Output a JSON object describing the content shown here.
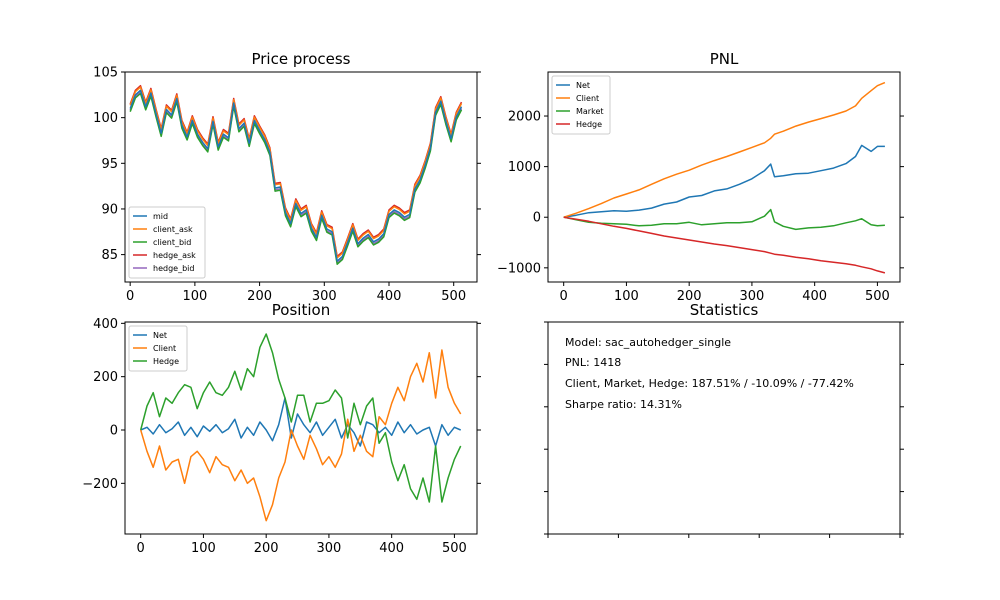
{
  "chart_data": [
    {
      "type": "line",
      "title": "Price process",
      "xlim": [
        -8,
        536
      ],
      "ylim": [
        82,
        105
      ],
      "xticks": [
        0,
        100,
        200,
        300,
        400,
        500
      ],
      "yticks": [
        85,
        90,
        95,
        100,
        105
      ],
      "legend_position": "lower-left",
      "series": [
        {
          "name": "mid",
          "color": "#1f77b4",
          "x": [
            0,
            8,
            16,
            24,
            32,
            40,
            48,
            56,
            64,
            72,
            80,
            88,
            96,
            104,
            112,
            120,
            128,
            136,
            144,
            152,
            160,
            168,
            176,
            184,
            192,
            200,
            208,
            216,
            224,
            232,
            240,
            248,
            256,
            264,
            272,
            280,
            288,
            296,
            304,
            312,
            320,
            328,
            336,
            344,
            352,
            360,
            368,
            376,
            384,
            392,
            400,
            408,
            416,
            424,
            432,
            440,
            448,
            456,
            464,
            472,
            480,
            488,
            496,
            504,
            512
          ],
          "y": [
            101,
            102.5,
            103,
            101.2,
            102.7,
            100.4,
            98.3,
            100.9,
            100.3,
            102.1,
            99.2,
            97.9,
            99.7,
            98.2,
            97.3,
            96.6,
            99.6,
            96.8,
            98.2,
            97.8,
            101.6,
            98.8,
            99.4,
            97.2,
            99.7,
            98.6,
            97.6,
            96.2,
            92.3,
            92.4,
            89.6,
            88.4,
            90.6,
            89.5,
            89.9,
            87.9,
            86.9,
            89.3,
            87.8,
            87.5,
            84.3,
            84.8,
            86.3,
            87.9,
            86.2,
            86.8,
            87.2,
            86.4,
            86.7,
            87.3,
            89.4,
            89.9,
            89.6,
            89.1,
            89.4,
            92.2,
            93.2,
            94.8,
            96.7,
            100.6,
            101.8,
            99.6,
            97.7,
            100.1,
            101.2
          ]
        },
        {
          "name": "client_ask",
          "color": "#ff7f0e"
        },
        {
          "name": "client_bid",
          "color": "#2ca02c"
        },
        {
          "name": "hedge_ask",
          "color": "#d62728"
        },
        {
          "name": "hedge_bid",
          "color": "#9467bd"
        }
      ]
    },
    {
      "type": "line",
      "title": "PNL",
      "xlim": [
        -25,
        536
      ],
      "ylim": [
        -1280,
        2870
      ],
      "xticks": [
        0,
        100,
        200,
        300,
        400,
        500
      ],
      "yticks": [
        -1000,
        0,
        1000,
        2000
      ],
      "legend_position": "upper-left",
      "x": [
        0,
        20,
        40,
        60,
        80,
        100,
        120,
        140,
        160,
        180,
        200,
        220,
        240,
        260,
        280,
        300,
        320,
        330,
        336,
        350,
        370,
        390,
        410,
        430,
        450,
        465,
        475,
        490,
        500,
        512
      ],
      "series": [
        {
          "name": "Net",
          "color": "#1f77b4",
          "values": [
            0,
            40,
            90,
            110,
            130,
            120,
            140,
            180,
            260,
            300,
            400,
            430,
            520,
            560,
            650,
            760,
            920,
            1050,
            800,
            820,
            860,
            870,
            920,
            970,
            1060,
            1200,
            1420,
            1300,
            1400,
            1400
          ]
        },
        {
          "name": "Client",
          "color": "#ff7f0e",
          "values": [
            0,
            80,
            170,
            270,
            380,
            460,
            540,
            650,
            760,
            850,
            930,
            1030,
            1120,
            1200,
            1290,
            1380,
            1470,
            1560,
            1640,
            1700,
            1800,
            1880,
            1950,
            2020,
            2100,
            2200,
            2350,
            2500,
            2600,
            2660
          ]
        },
        {
          "name": "Market",
          "color": "#2ca02c",
          "values": [
            0,
            -50,
            -100,
            -120,
            -130,
            -140,
            -170,
            -160,
            -130,
            -130,
            -100,
            -150,
            -130,
            -110,
            -110,
            -90,
            20,
            150,
            -90,
            -180,
            -240,
            -210,
            -200,
            -170,
            -110,
            -70,
            -30,
            -150,
            -170,
            -160
          ]
        },
        {
          "name": "Hedge",
          "color": "#d62728",
          "values": [
            0,
            -40,
            -80,
            -130,
            -180,
            -220,
            -270,
            -320,
            -370,
            -410,
            -450,
            -490,
            -530,
            -560,
            -600,
            -640,
            -680,
            -710,
            -730,
            -750,
            -790,
            -820,
            -860,
            -890,
            -920,
            -950,
            -980,
            -1020,
            -1060,
            -1100
          ]
        }
      ]
    },
    {
      "type": "line",
      "title": "Position",
      "xlim": [
        -25,
        536
      ],
      "ylim": [
        -390,
        405
      ],
      "xticks": [
        0,
        100,
        200,
        300,
        400,
        500
      ],
      "yticks": [
        -200,
        0,
        200,
        400
      ],
      "legend_position": "upper-left",
      "x": [
        0,
        10,
        20,
        30,
        40,
        50,
        60,
        70,
        80,
        90,
        100,
        110,
        120,
        130,
        140,
        150,
        160,
        170,
        180,
        190,
        200,
        210,
        220,
        230,
        240,
        250,
        260,
        270,
        280,
        290,
        300,
        310,
        320,
        330,
        340,
        350,
        360,
        370,
        380,
        390,
        400,
        410,
        420,
        430,
        440,
        450,
        460,
        470,
        480,
        490,
        500,
        510
      ],
      "series": [
        {
          "name": "Net",
          "color": "#1f77b4",
          "values": [
            0,
            10,
            -15,
            20,
            -10,
            5,
            30,
            -20,
            10,
            -25,
            15,
            -5,
            20,
            -10,
            5,
            40,
            -30,
            10,
            -20,
            30,
            0,
            -40,
            20,
            120,
            -30,
            60,
            20,
            -10,
            30,
            -20,
            10,
            40,
            -30,
            20,
            -10,
            -60,
            30,
            20,
            -10,
            10,
            -20,
            30,
            -10,
            20,
            -15,
            0,
            10,
            -60,
            20,
            -20,
            10,
            0
          ]
        },
        {
          "name": "Client",
          "color": "#ff7f0e",
          "values": [
            0,
            -80,
            -140,
            -60,
            -150,
            -120,
            -110,
            -200,
            -100,
            -80,
            -110,
            -160,
            -100,
            -130,
            -140,
            -190,
            -150,
            -200,
            -180,
            -250,
            -340,
            -280,
            -180,
            -120,
            0,
            -60,
            -110,
            -20,
            -70,
            -130,
            -100,
            -140,
            -90,
            40,
            -80,
            -20,
            -80,
            -100,
            50,
            20,
            100,
            160,
            110,
            200,
            250,
            180,
            290,
            120,
            300,
            160,
            100,
            60
          ]
        },
        {
          "name": "Hedge",
          "color": "#2ca02c",
          "values": [
            0,
            90,
            140,
            50,
            120,
            100,
            140,
            170,
            160,
            80,
            140,
            180,
            140,
            130,
            160,
            220,
            150,
            230,
            200,
            310,
            360,
            290,
            190,
            120,
            30,
            130,
            130,
            30,
            100,
            100,
            110,
            150,
            120,
            -30,
            100,
            20,
            90,
            120,
            -50,
            -10,
            -120,
            -190,
            -130,
            -220,
            -260,
            -180,
            -270,
            -60,
            -270,
            -180,
            -110,
            -60
          ]
        }
      ]
    }
  ],
  "statistics": {
    "title": "Statistics",
    "lines": [
      "Model: sac_autohedger_single",
      "PNL: 1418",
      "Client, Market, Hedge: 187.51% / -10.09% / -77.42%",
      "Sharpe ratio: 14.31%"
    ]
  }
}
